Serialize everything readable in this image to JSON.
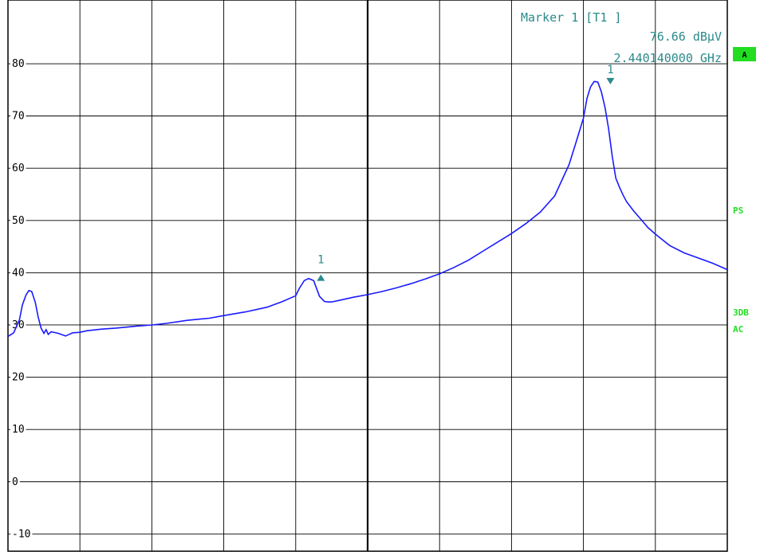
{
  "colors": {
    "trace": "#1a1aff",
    "marker": "#2a8a8a",
    "status": "#22dd22",
    "grid": "#000000",
    "background": "#ffffff"
  },
  "marker_info": {
    "header": "Marker 1 [T1 ]",
    "level": "76.66 dBµV",
    "frequency": "2.440140000 GHz"
  },
  "status": {
    "badge": "A",
    "ps": "PS",
    "threedb": "3DB",
    "ac": "AC"
  },
  "chart_data": {
    "type": "line",
    "title": "",
    "xlabel": "",
    "ylabel": "",
    "ylim": [
      -13.3,
      92.2
    ],
    "y_ticks": [
      80,
      70,
      60,
      50,
      40,
      30,
      20,
      10,
      0,
      -10
    ],
    "y_tick_labels": [
      "80",
      "70",
      "60",
      "50",
      "40",
      "30",
      "20",
      "10",
      "0",
      "-10"
    ],
    "grid": true,
    "x_divisions": 10,
    "series": [
      {
        "x": [
          0.0,
          0.008,
          0.016,
          0.02,
          0.025,
          0.029,
          0.033,
          0.038,
          0.042,
          0.046,
          0.05,
          0.053,
          0.056,
          0.06,
          0.07,
          0.08,
          0.09,
          0.1,
          0.11,
          0.13,
          0.15,
          0.18,
          0.2,
          0.22,
          0.25,
          0.28,
          0.3,
          0.33,
          0.36,
          0.38,
          0.4,
          0.405,
          0.412,
          0.418,
          0.425,
          0.43,
          0.433,
          0.437,
          0.44,
          0.445,
          0.45,
          0.46,
          0.48,
          0.5,
          0.52,
          0.54,
          0.56,
          0.58,
          0.6,
          0.62,
          0.64,
          0.66,
          0.68,
          0.7,
          0.72,
          0.74,
          0.76,
          0.78,
          0.79,
          0.8,
          0.805,
          0.81,
          0.815,
          0.82,
          0.825,
          0.83,
          0.835,
          0.84,
          0.845,
          0.85,
          0.855,
          0.86,
          0.87,
          0.88,
          0.89,
          0.9,
          0.91,
          0.92,
          0.94,
          0.96,
          0.98,
          1.0
        ],
        "y": [
          27.8,
          28.5,
          31.0,
          33.8,
          35.7,
          36.6,
          36.4,
          34.3,
          31.5,
          29.4,
          28.4,
          29.1,
          28.2,
          28.7,
          28.4,
          27.9,
          28.5,
          28.6,
          28.9,
          29.2,
          29.4,
          29.8,
          30.0,
          30.3,
          30.9,
          31.3,
          31.8,
          32.5,
          33.4,
          34.4,
          35.6,
          37.0,
          38.5,
          38.9,
          38.5,
          36.6,
          35.5,
          34.9,
          34.5,
          34.4,
          34.4,
          34.7,
          35.3,
          35.8,
          36.4,
          37.1,
          37.9,
          38.8,
          39.8,
          41.0,
          42.4,
          44.1,
          45.8,
          47.5,
          49.4,
          51.6,
          54.7,
          60.7,
          65.1,
          69.6,
          73.4,
          75.6,
          76.6,
          76.5,
          74.6,
          71.6,
          67.5,
          62.3,
          58.1,
          56.4,
          54.9,
          53.6,
          51.8,
          50.2,
          48.6,
          47.4,
          46.3,
          45.2,
          43.8,
          42.8,
          41.8,
          40.6
        ]
      }
    ],
    "markers": [
      {
        "label": "1",
        "x": 0.435,
        "y": 38.9,
        "shape": "triangle-up"
      },
      {
        "label": "1",
        "x": 0.8375,
        "y": 76.66,
        "shape": "triangle-down"
      }
    ]
  }
}
